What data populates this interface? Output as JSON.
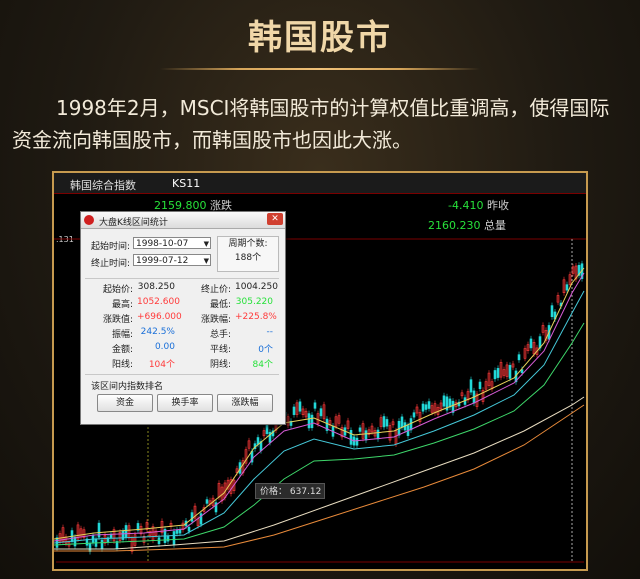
{
  "title": "韩国股市",
  "paragraph": {
    "line1": "1998年2月，MSCI将韩国股市的计算权值比重调高，使得国际",
    "line2": "资金流向韩国股市，而韩国股市也因此大涨。"
  },
  "terminal": {
    "index_name": "韩国综合指数",
    "code": "KS11",
    "top_value": "2159.800",
    "top_label": "涨跌",
    "change": "-4.410",
    "change_label": "昨收",
    "last_value": "2160.230",
    "last_label": "总量",
    "left_edge": ".131",
    "tooltip": "价格： 637.12"
  },
  "dialog": {
    "title": "大盘K线区间统计",
    "start_label": "起始时间:",
    "start_value": "1998-10-07",
    "end_label": "终止时间:",
    "end_value": "1999-07-12",
    "period_label": "周期个数:",
    "period_value": "188个",
    "stats": [
      {
        "label": "起始价:",
        "value": "308.250",
        "label2": "终止价:",
        "value2": "1004.250"
      },
      {
        "label": "最高:",
        "value": "1052.600",
        "label2": "最低:",
        "value2": "305.220"
      },
      {
        "label": "涨跌值:",
        "value": "+696.000",
        "label2": "涨跌幅:",
        "value2": "+225.8%"
      },
      {
        "label": "振幅:",
        "value": "242.5%",
        "label2": "总手:",
        "value2": "--"
      },
      {
        "label": "金额:",
        "value": "0.00",
        "label2": "平线:",
        "value2": "0个"
      },
      {
        "label": "阳线:",
        "value": "104个",
        "label2": "阴线:",
        "value2": "84个"
      }
    ],
    "rank_label": "该区间内指数排名",
    "buttons": [
      "资金",
      "换手率",
      "涨跌幅"
    ]
  },
  "colors": {
    "gold": "#c69a4f",
    "up": "#ff3a3a",
    "down": "#27e13a"
  }
}
